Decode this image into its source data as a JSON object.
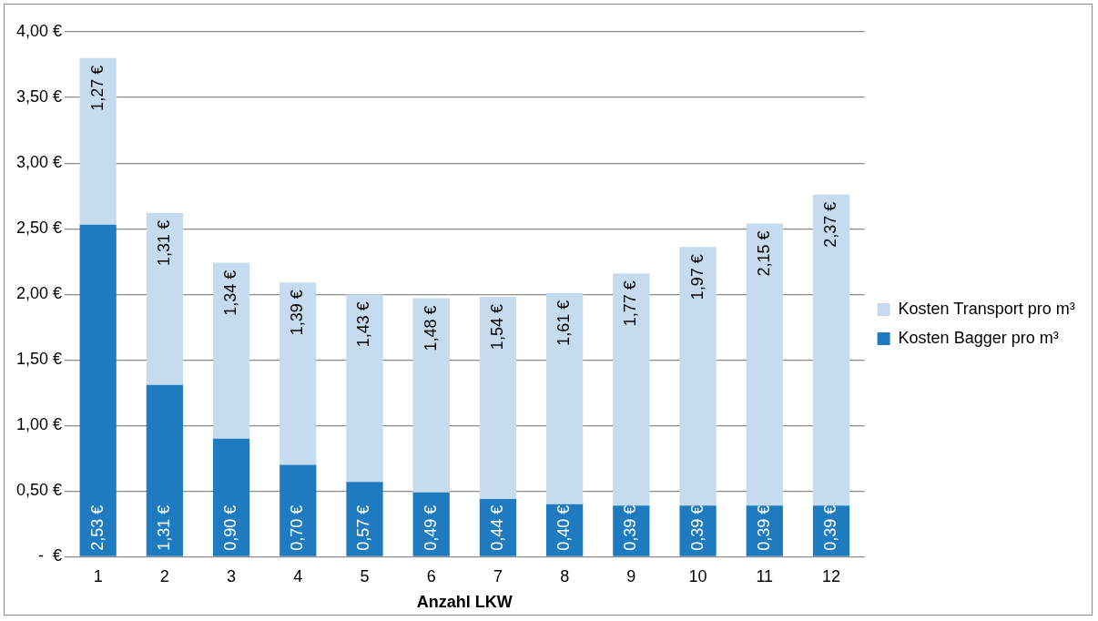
{
  "chart_data": {
    "type": "bar",
    "stacked": true,
    "xlabel": "Anzahl LKW",
    "categories": [
      "1",
      "2",
      "3",
      "4",
      "5",
      "6",
      "7",
      "8",
      "9",
      "10",
      "11",
      "12"
    ],
    "series": [
      {
        "name": "Kosten Bagger pro m³",
        "color": "#1f7bbf",
        "values": [
          2.53,
          1.31,
          0.9,
          0.7,
          0.57,
          0.49,
          0.44,
          0.4,
          0.39,
          0.39,
          0.39,
          0.39
        ],
        "value_labels": [
          "2,53 €",
          "1,31 €",
          "0,90 €",
          "0,70 €",
          "0,57 €",
          "0,49 €",
          "0,44 €",
          "0,40 €",
          "0,39 €",
          "0,39 €",
          "0,39 €",
          "0,39 €"
        ]
      },
      {
        "name": "Kosten Transport pro m³",
        "color": "#c6dbee",
        "values": [
          1.27,
          1.31,
          1.34,
          1.39,
          1.43,
          1.48,
          1.54,
          1.61,
          1.77,
          1.97,
          2.15,
          2.37
        ],
        "value_labels": [
          "1,27 €",
          "1,31 €",
          "1,34 €",
          "1,39 €",
          "1,43 €",
          "1,48 €",
          "1,54 €",
          "1,61 €",
          "1,77 €",
          "1,97 €",
          "2,15 €",
          "2,37 €"
        ]
      }
    ],
    "ylim": [
      0,
      4
    ],
    "yticks": [
      {
        "value": 0,
        "label": "-  €"
      },
      {
        "value": 0.5,
        "label": "0,50 €"
      },
      {
        "value": 1,
        "label": "1,00 €"
      },
      {
        "value": 1.5,
        "label": "1,50 €"
      },
      {
        "value": 2,
        "label": "2,00 €"
      },
      {
        "value": 2.5,
        "label": "2,50 €"
      },
      {
        "value": 3,
        "label": "3,00 €"
      },
      {
        "value": 3.5,
        "label": "3,50 €"
      },
      {
        "value": 4,
        "label": "4,00 €"
      }
    ],
    "grid": "y",
    "legend": "right"
  }
}
